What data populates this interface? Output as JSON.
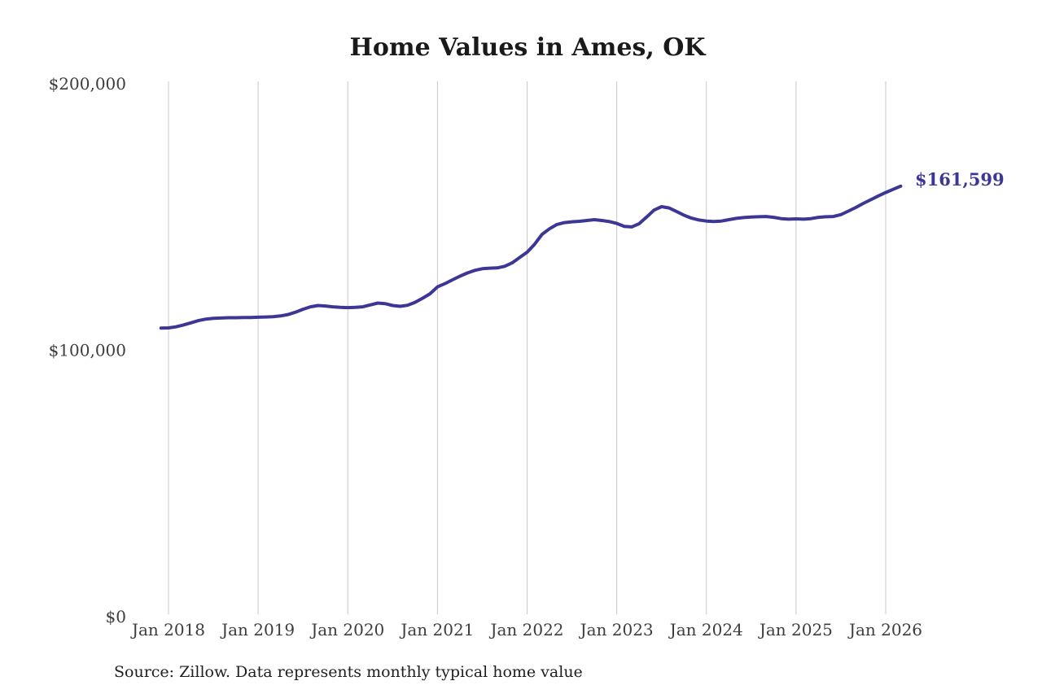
{
  "title": "Home Values in Ames, OK",
  "annotation": {
    "label": "$161,599",
    "value": 161599
  },
  "source_note": "Source: Zillow. Data represents monthly typical home value",
  "colors": {
    "line": "#3c3795",
    "annotation": "#3c3795",
    "grid": "#c9c9c9",
    "title": "#1a1a1a",
    "tick_label": "#3d3d3d",
    "source": "#1f1f1f",
    "background": "#ffffff"
  },
  "chart_data": {
    "type": "line",
    "title": "Home Values in Ames, OK",
    "grid": {
      "vertical": true,
      "horizontal": false
    },
    "legend": "none",
    "x_axis": {
      "tick_labels": [
        "Jan 2018",
        "Jan 2019",
        "Jan 2020",
        "Jan 2021",
        "Jan 2022",
        "Jan 2023",
        "Jan 2024",
        "Jan 2025",
        "Jan 2026"
      ],
      "months_per_point": 1,
      "first_point_month": "Dec 2017",
      "last_point_month": "Mar 2026",
      "first_tick_point_index": 1
    },
    "y_axis": {
      "tick_labels": [
        "$0",
        "$100,000",
        "$200,000"
      ],
      "tick_values": [
        0,
        100000,
        200000
      ],
      "range": [
        0,
        200000
      ]
    },
    "series": [
      {
        "name": "Monthly typical home value",
        "values": [
          108300,
          108400,
          108800,
          109500,
          110300,
          111100,
          111700,
          112000,
          112100,
          112200,
          112200,
          112300,
          112300,
          112400,
          112500,
          112600,
          112900,
          113400,
          114300,
          115400,
          116300,
          116800,
          116600,
          116300,
          116100,
          116000,
          116100,
          116300,
          117000,
          117700,
          117500,
          116800,
          116500,
          116900,
          118000,
          119500,
          121200,
          123800,
          125000,
          126400,
          127800,
          129000,
          130000,
          130600,
          130800,
          130900,
          131500,
          132800,
          134800,
          136800,
          139800,
          143500,
          145600,
          147200,
          147900,
          148200,
          148400,
          148700,
          149000,
          148700,
          148300,
          147600,
          146500,
          146300,
          147500,
          150000,
          152600,
          153900,
          153400,
          152100,
          150700,
          149600,
          148900,
          148500,
          148300,
          148500,
          149000,
          149500,
          149800,
          150000,
          150100,
          150200,
          149900,
          149400,
          149200,
          149300,
          149200,
          149400,
          149900,
          150100,
          150200,
          150900,
          152200,
          153600,
          155100,
          156500,
          157900,
          159200,
          160400,
          161599
        ]
      }
    ],
    "end_annotation": {
      "label": "$161,599",
      "value": 161599
    }
  }
}
